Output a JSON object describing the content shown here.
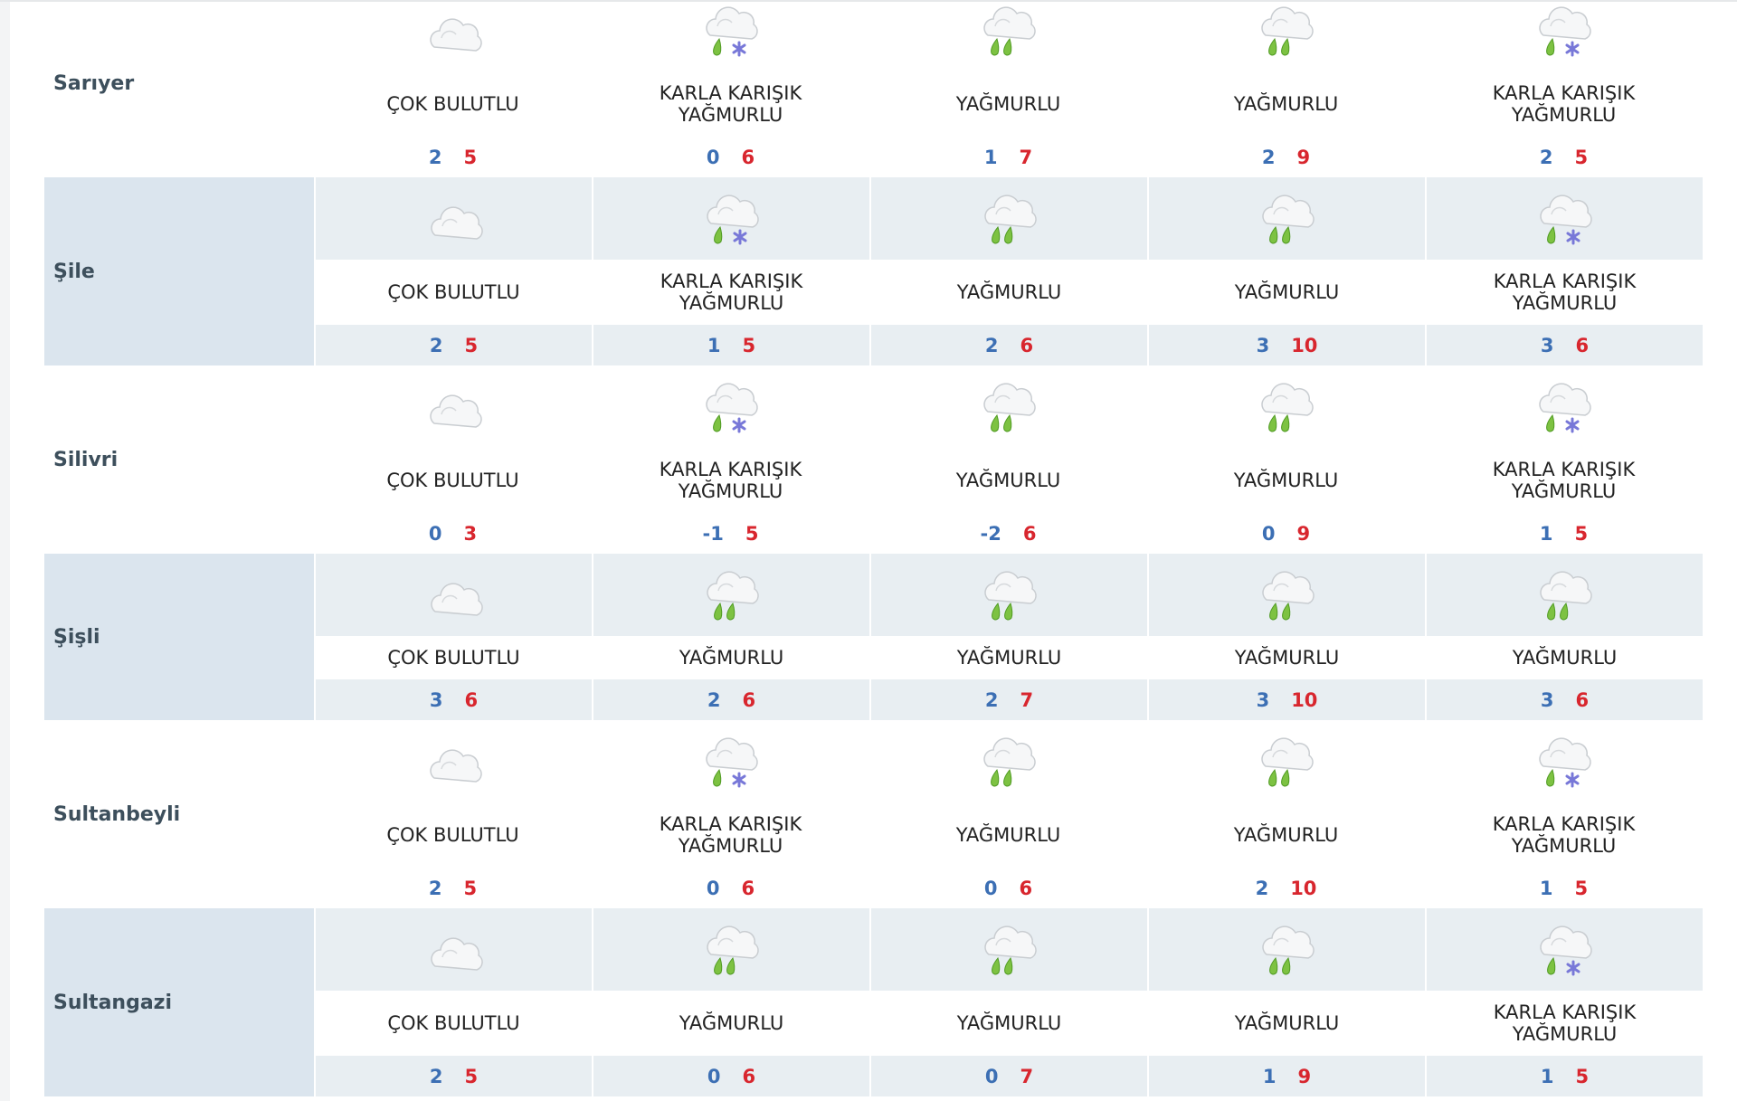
{
  "colors": {
    "min_temp": "#3c6fb4",
    "max_temp": "#d8262e",
    "alt_row": "#dbe5ee",
    "alt_cell": "#e8eef2"
  },
  "rows": [
    {
      "name": "Sarıyer",
      "alt": false,
      "days": [
        {
          "icon": "cloudy-icon",
          "desc": "ÇOK BULUTLU",
          "min": "2",
          "max": "5"
        },
        {
          "icon": "sleet-icon",
          "desc": "KARLA KARIŞIK YAĞMURLU",
          "min": "0",
          "max": "6"
        },
        {
          "icon": "rain-icon",
          "desc": "YAĞMURLU",
          "min": "1",
          "max": "7"
        },
        {
          "icon": "rain-icon",
          "desc": "YAĞMURLU",
          "min": "2",
          "max": "9"
        },
        {
          "icon": "sleet-icon",
          "desc": "KARLA KARIŞIK YAĞMURLU",
          "min": "2",
          "max": "5"
        }
      ]
    },
    {
      "name": "Şile",
      "alt": true,
      "days": [
        {
          "icon": "cloudy-icon",
          "desc": "ÇOK BULUTLU",
          "min": "2",
          "max": "5"
        },
        {
          "icon": "sleet-icon",
          "desc": "KARLA KARIŞIK YAĞMURLU",
          "min": "1",
          "max": "5"
        },
        {
          "icon": "rain-icon",
          "desc": "YAĞMURLU",
          "min": "2",
          "max": "6"
        },
        {
          "icon": "rain-icon",
          "desc": "YAĞMURLU",
          "min": "3",
          "max": "10"
        },
        {
          "icon": "sleet-icon",
          "desc": "KARLA KARIŞIK YAĞMURLU",
          "min": "3",
          "max": "6"
        }
      ]
    },
    {
      "name": "Silivri",
      "alt": false,
      "days": [
        {
          "icon": "cloudy-icon",
          "desc": "ÇOK BULUTLU",
          "min": "0",
          "max": "3"
        },
        {
          "icon": "sleet-icon",
          "desc": "KARLA KARIŞIK YAĞMURLU",
          "min": "-1",
          "max": "5"
        },
        {
          "icon": "rain-icon",
          "desc": "YAĞMURLU",
          "min": "-2",
          "max": "6"
        },
        {
          "icon": "rain-icon",
          "desc": "YAĞMURLU",
          "min": "0",
          "max": "9"
        },
        {
          "icon": "sleet-icon",
          "desc": "KARLA KARIŞIK YAĞMURLU",
          "min": "1",
          "max": "5"
        }
      ]
    },
    {
      "name": "Şişli",
      "alt": true,
      "days": [
        {
          "icon": "cloudy-icon",
          "desc": "ÇOK BULUTLU",
          "min": "3",
          "max": "6"
        },
        {
          "icon": "rain-icon",
          "desc": "YAĞMURLU",
          "min": "2",
          "max": "6"
        },
        {
          "icon": "rain-icon",
          "desc": "YAĞMURLU",
          "min": "2",
          "max": "7"
        },
        {
          "icon": "rain-icon",
          "desc": "YAĞMURLU",
          "min": "3",
          "max": "10"
        },
        {
          "icon": "rain-icon",
          "desc": "YAĞMURLU",
          "min": "3",
          "max": "6"
        }
      ]
    },
    {
      "name": "Sultanbeyli",
      "alt": false,
      "days": [
        {
          "icon": "cloudy-icon",
          "desc": "ÇOK BULUTLU",
          "min": "2",
          "max": "5"
        },
        {
          "icon": "sleet-icon",
          "desc": "KARLA KARIŞIK YAĞMURLU",
          "min": "0",
          "max": "6"
        },
        {
          "icon": "rain-icon",
          "desc": "YAĞMURLU",
          "min": "0",
          "max": "6"
        },
        {
          "icon": "rain-icon",
          "desc": "YAĞMURLU",
          "min": "2",
          "max": "10"
        },
        {
          "icon": "sleet-icon",
          "desc": "KARLA KARIŞIK YAĞMURLU",
          "min": "1",
          "max": "5"
        }
      ]
    },
    {
      "name": "Sultangazi",
      "alt": true,
      "days": [
        {
          "icon": "cloudy-icon",
          "desc": "ÇOK BULUTLU",
          "min": "2",
          "max": "5"
        },
        {
          "icon": "rain-icon",
          "desc": "YAĞMURLU",
          "min": "0",
          "max": "6"
        },
        {
          "icon": "rain-icon",
          "desc": "YAĞMURLU",
          "min": "0",
          "max": "7"
        },
        {
          "icon": "rain-icon",
          "desc": "YAĞMURLU",
          "min": "1",
          "max": "9"
        },
        {
          "icon": "sleet-icon",
          "desc": "KARLA KARIŞIK YAĞMURLU",
          "min": "1",
          "max": "5"
        }
      ]
    }
  ]
}
